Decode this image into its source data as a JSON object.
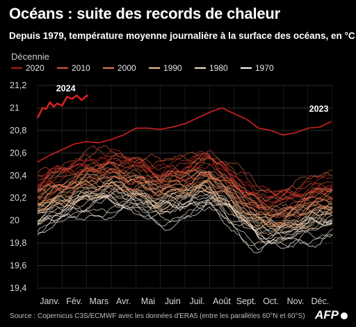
{
  "title": "Océans : suite des records de chaleur",
  "subtitle": "Depuis 1979, température moyenne journalière à la surface des océans, en °C",
  "legend": {
    "title": "Décennie",
    "items": [
      {
        "label": "2020",
        "color": "#b41e1e"
      },
      {
        "label": "2010",
        "color": "#d9573a"
      },
      {
        "label": "2000",
        "color": "#e3835a"
      },
      {
        "label": "1990",
        "color": "#f2c49a"
      },
      {
        "label": "1980",
        "color": "#f5e6d6"
      },
      {
        "label": "1970",
        "color": "#ffffff"
      }
    ]
  },
  "source": "Source : Copernicus C3S/ECMWF avec les données d'ERA5 (entre les parallèles 60°N et 60°S)",
  "brand": "AFP",
  "chart_data": {
    "type": "line",
    "x_labels": [
      "Janv.",
      "Fév.",
      "Mars",
      "Avr.",
      "Mai",
      "Juin",
      "Juil.",
      "Août",
      "Sept.",
      "Oct.",
      "Nov.",
      "Déc."
    ],
    "y_ticks": [
      "19,4",
      "19,6",
      "19,8",
      "20",
      "20,2",
      "20,4",
      "20,6",
      "20,8",
      "21",
      "21,2"
    ],
    "ylim": [
      19.4,
      21.2
    ],
    "grid": true,
    "annotations": [
      {
        "text": "2024",
        "x_month": 1.15,
        "y": 21.11
      },
      {
        "text": "2023",
        "x_month": 11.45,
        "y": 20.93
      }
    ],
    "year_range": [
      1979,
      2024
    ],
    "highlight_years": [
      2023,
      2024
    ],
    "series_2024": {
      "name": "2024",
      "months": [
        0.0,
        0.2,
        0.35,
        0.5,
        0.65,
        0.8,
        1.0,
        1.2,
        1.4,
        1.6,
        1.8,
        2.0,
        2.05
      ],
      "values": [
        20.91,
        21.0,
        20.99,
        21.05,
        21.01,
        21.04,
        21.02,
        21.1,
        21.08,
        21.11,
        21.07,
        21.11,
        21.1
      ]
    },
    "series_2023": {
      "name": "2023",
      "months": [
        0,
        0.5,
        1,
        1.5,
        2,
        2.5,
        3,
        3.5,
        4,
        4.5,
        5,
        5.5,
        6,
        6.5,
        7,
        7.5,
        8,
        8.5,
        9,
        9.5,
        10,
        10.5,
        11,
        11.5,
        11.97
      ],
      "values": [
        20.52,
        20.58,
        20.63,
        20.68,
        20.7,
        20.69,
        20.72,
        20.76,
        20.82,
        20.82,
        20.81,
        20.83,
        20.86,
        20.91,
        20.96,
        21.0,
        20.95,
        20.9,
        20.82,
        20.8,
        20.76,
        20.78,
        20.82,
        20.83,
        20.88
      ]
    },
    "climatology_by_month": [
      20.1,
      20.2,
      20.28,
      20.3,
      20.27,
      20.2,
      20.25,
      20.32,
      20.15,
      19.98,
      19.97,
      20.05,
      20.1
    ],
    "warming_per_year": 0.0105,
    "noise_amplitude": 0.045
  }
}
